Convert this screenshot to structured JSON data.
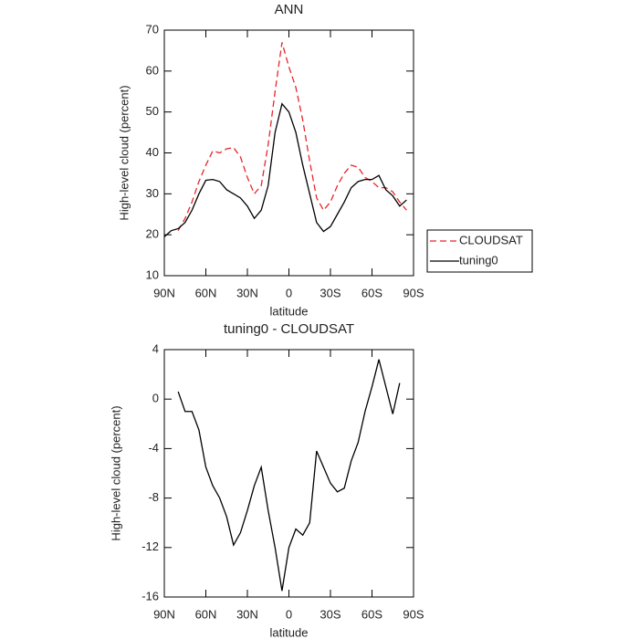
{
  "chart_data": [
    {
      "type": "line",
      "title": "ANN",
      "xlabel": "latitude",
      "ylabel": "High-level cloud (percent)",
      "x": [
        90,
        85,
        80,
        75,
        70,
        65,
        60,
        55,
        50,
        45,
        40,
        35,
        30,
        25,
        20,
        15,
        10,
        5,
        0,
        -5,
        -10,
        -15,
        -20,
        -25,
        -30,
        -35,
        -40,
        -45,
        -50,
        -55,
        -60,
        -65,
        -70,
        -75,
        -80,
        -85
      ],
      "xlim": [
        90,
        -90
      ],
      "xticks": [
        {
          "value": 90,
          "label": "90N"
        },
        {
          "value": 60,
          "label": "60N"
        },
        {
          "value": 30,
          "label": "30N"
        },
        0,
        {
          "value": -30,
          "label": "30S"
        },
        {
          "value": -60,
          "label": "60S"
        },
        {
          "value": -90,
          "label": "90S"
        }
      ],
      "ylim": [
        10,
        70
      ],
      "yticks": [
        10,
        20,
        30,
        40,
        50,
        60,
        70
      ],
      "legend": "outside-right",
      "series": [
        {
          "name": "CLOUDSAT",
          "color": "#e8262a",
          "linestyle": "dashed",
          "values": [
            null,
            null,
            21,
            24,
            28,
            33,
            37,
            40.5,
            40,
            41,
            41.3,
            39,
            34,
            30,
            32,
            42,
            55,
            67,
            61,
            56,
            48,
            38,
            29,
            26,
            28,
            32,
            35,
            37,
            36.5,
            34,
            33,
            31.5,
            31.5,
            30.5,
            28,
            26
          ]
        },
        {
          "name": "tuning0",
          "color": "#000000",
          "linestyle": "solid",
          "values": [
            19.5,
            21,
            21.5,
            23,
            26,
            30,
            33.3,
            33.5,
            33,
            31,
            30,
            29,
            27,
            24,
            26,
            32,
            45,
            52,
            50,
            45,
            37,
            30,
            23,
            20.8,
            22,
            25,
            28,
            31.5,
            33,
            33.5,
            33.5,
            34.5,
            31,
            29.5,
            27,
            28.5
          ]
        }
      ]
    },
    {
      "type": "line",
      "title": "tuning0 - CLOUDSAT",
      "xlabel": "latitude",
      "ylabel": "High-level cloud (percent)",
      "x": [
        80,
        75,
        70,
        65,
        60,
        55,
        50,
        45,
        40,
        35,
        30,
        25,
        20,
        15,
        10,
        5,
        0,
        -5,
        -10,
        -15,
        -20,
        -25,
        -30,
        -35,
        -40,
        -45,
        -50,
        -55,
        -60,
        -65,
        -70,
        -75,
        -80
      ],
      "xlim": [
        90,
        -90
      ],
      "xticks": [
        {
          "value": 90,
          "label": "90N"
        },
        {
          "value": 60,
          "label": "60N"
        },
        {
          "value": 30,
          "label": "30N"
        },
        0,
        {
          "value": -30,
          "label": "30S"
        },
        {
          "value": -60,
          "label": "60S"
        },
        {
          "value": -90,
          "label": "90S"
        }
      ],
      "ylim": [
        -16,
        4
      ],
      "yticks": [
        -16,
        -12,
        -8,
        -4,
        0,
        4
      ],
      "color": "#000000",
      "values": [
        0.6,
        -1,
        -1,
        -2.5,
        -5.5,
        -7,
        -8,
        -9.5,
        -11.8,
        -10.8,
        -9,
        -7,
        -5.5,
        -9,
        -12,
        -15.5,
        -12,
        -10.5,
        -11,
        -10,
        -4.2,
        -5.5,
        -6.8,
        -7.5,
        -7.2,
        -5,
        -3.5,
        -1,
        1,
        3.2,
        1,
        -1.2,
        1.3
      ]
    }
  ]
}
